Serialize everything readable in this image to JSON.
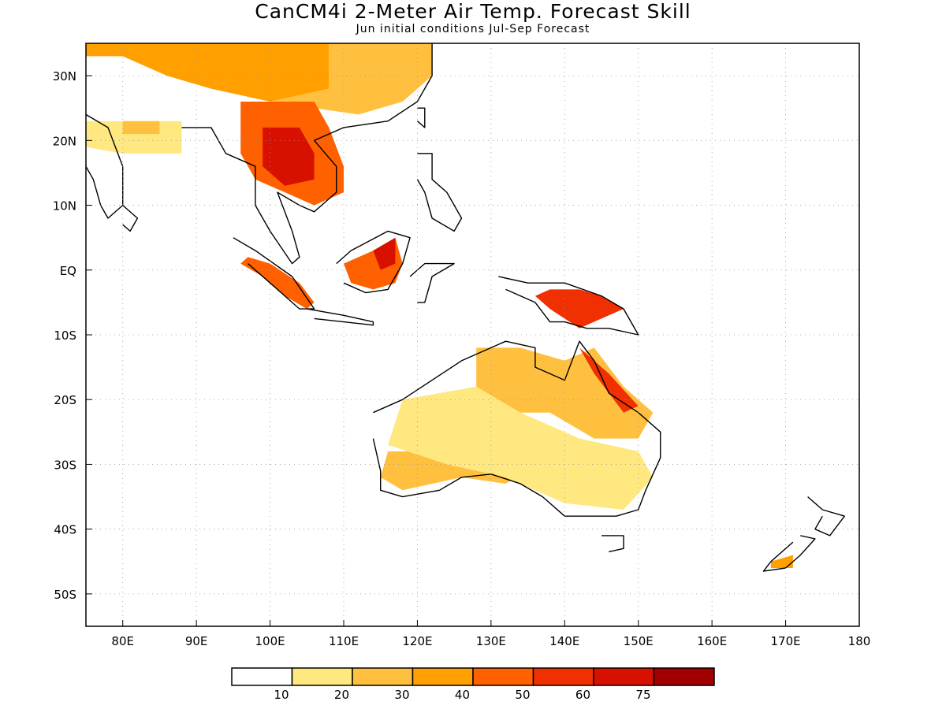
{
  "title": "CanCM4i 2-Meter Air Temp. Forecast Skill",
  "subtitle": "Jun initial conditions  Jul-Sep Forecast",
  "map": {
    "region": "Southeast Asia, Maritime Continent, Australia, Western Pacific",
    "lon_range": [
      75,
      180
    ],
    "lat_range": [
      -55,
      35
    ],
    "lon_ticks": [
      {
        "value": 80,
        "label": "80E"
      },
      {
        "value": 90,
        "label": "90E"
      },
      {
        "value": 100,
        "label": "100E"
      },
      {
        "value": 110,
        "label": "110E"
      },
      {
        "value": 120,
        "label": "120E"
      },
      {
        "value": 130,
        "label": "130E"
      },
      {
        "value": 140,
        "label": "140E"
      },
      {
        "value": 150,
        "label": "150E"
      },
      {
        "value": 160,
        "label": "160E"
      },
      {
        "value": 170,
        "label": "170E"
      },
      {
        "value": 180,
        "label": "180"
      }
    ],
    "lat_ticks": [
      {
        "value": 30,
        "label": "30N"
      },
      {
        "value": 20,
        "label": "20N"
      },
      {
        "value": 10,
        "label": "10N"
      },
      {
        "value": 0,
        "label": "EQ"
      },
      {
        "value": -10,
        "label": "10S"
      },
      {
        "value": -20,
        "label": "20S"
      },
      {
        "value": -30,
        "label": "30S"
      },
      {
        "value": -40,
        "label": "40S"
      },
      {
        "value": -50,
        "label": "50S"
      }
    ],
    "grid": "dotted"
  },
  "legend": {
    "colors": [
      "#ffffff",
      "#ffe880",
      "#ffc040",
      "#ffa000",
      "#ff6000",
      "#f03000",
      "#d81000",
      "#a00000"
    ],
    "labels": [
      "10",
      "20",
      "30",
      "40",
      "50",
      "60",
      "75"
    ]
  },
  "skill_regions": [
    {
      "name": "south-asia-north",
      "level": 3,
      "points": [
        [
          75,
          35
        ],
        [
          108,
          35
        ],
        [
          108,
          28
        ],
        [
          100,
          26
        ],
        [
          92,
          28
        ],
        [
          86,
          30
        ],
        [
          80,
          33
        ],
        [
          75,
          33
        ]
      ]
    },
    {
      "name": "tibet-china",
      "level": 2,
      "points": [
        [
          108,
          35
        ],
        [
          122,
          35
        ],
        [
          122,
          30
        ],
        [
          118,
          26
        ],
        [
          112,
          24
        ],
        [
          106,
          25
        ],
        [
          100,
          26
        ],
        [
          108,
          28
        ]
      ]
    },
    {
      "name": "india-band",
      "level": 1,
      "points": [
        [
          75,
          23
        ],
        [
          88,
          23
        ],
        [
          88,
          18
        ],
        [
          80,
          18
        ],
        [
          75,
          19
        ]
      ]
    },
    {
      "name": "india-band-2",
      "level": 2,
      "points": [
        [
          80,
          23
        ],
        [
          85,
          23
        ],
        [
          85,
          21
        ],
        [
          80,
          21
        ]
      ]
    },
    {
      "name": "indochina-outer",
      "level": 4,
      "points": [
        [
          96,
          26
        ],
        [
          106,
          26
        ],
        [
          108,
          22
        ],
        [
          110,
          16
        ],
        [
          110,
          12
        ],
        [
          106,
          10
        ],
        [
          102,
          12
        ],
        [
          98,
          14
        ],
        [
          96,
          18
        ]
      ]
    },
    {
      "name": "indochina-core",
      "level": 6,
      "points": [
        [
          99,
          22
        ],
        [
          104,
          22
        ],
        [
          106,
          18
        ],
        [
          106,
          14
        ],
        [
          102,
          13
        ],
        [
          99,
          16
        ]
      ]
    },
    {
      "name": "sumatra",
      "level": 4,
      "points": [
        [
          97,
          2
        ],
        [
          100,
          1
        ],
        [
          104,
          -2
        ],
        [
          106,
          -5
        ],
        [
          105,
          -6
        ],
        [
          102,
          -4
        ],
        [
          99,
          -1
        ],
        [
          96,
          1
        ]
      ]
    },
    {
      "name": "borneo",
      "level": 4,
      "points": [
        [
          110,
          1
        ],
        [
          114,
          3
        ],
        [
          117,
          5
        ],
        [
          118,
          1
        ],
        [
          117,
          -2
        ],
        [
          114,
          -3
        ],
        [
          111,
          -2
        ]
      ]
    },
    {
      "name": "borneo-core",
      "level": 6,
      "points": [
        [
          114,
          3
        ],
        [
          117,
          5
        ],
        [
          117,
          1
        ],
        [
          115,
          0
        ]
      ]
    },
    {
      "name": "new-guinea",
      "level": 5,
      "points": [
        [
          138,
          -3
        ],
        [
          142,
          -3
        ],
        [
          145,
          -4
        ],
        [
          148,
          -6
        ],
        [
          146,
          -7
        ],
        [
          142,
          -9
        ],
        [
          138,
          -6
        ],
        [
          136,
          -4
        ]
      ]
    },
    {
      "name": "australia-north",
      "level": 2,
      "points": [
        [
          128,
          -12
        ],
        [
          134,
          -12
        ],
        [
          140,
          -14
        ],
        [
          144,
          -12
        ],
        [
          148,
          -18
        ],
        [
          152,
          -22
        ],
        [
          150,
          -26
        ],
        [
          144,
          -26
        ],
        [
          138,
          -22
        ],
        [
          132,
          -22
        ],
        [
          128,
          -18
        ]
      ]
    },
    {
      "name": "australia-east",
      "level": 5,
      "points": [
        [
          142,
          -12
        ],
        [
          146,
          -16
        ],
        [
          150,
          -21
        ],
        [
          148,
          -22
        ],
        [
          144,
          -16
        ]
      ]
    },
    {
      "name": "australia-southwest",
      "level": 2,
      "points": [
        [
          116,
          -28
        ],
        [
          124,
          -28
        ],
        [
          130,
          -27
        ],
        [
          136,
          -30
        ],
        [
          132,
          -33
        ],
        [
          126,
          -32
        ],
        [
          118,
          -34
        ],
        [
          115,
          -32
        ]
      ]
    },
    {
      "name": "australia-interior",
      "level": 1,
      "points": [
        [
          118,
          -20
        ],
        [
          128,
          -18
        ],
        [
          134,
          -22
        ],
        [
          142,
          -26
        ],
        [
          150,
          -28
        ],
        [
          152,
          -32
        ],
        [
          148,
          -37
        ],
        [
          140,
          -36
        ],
        [
          132,
          -32
        ],
        [
          124,
          -30
        ],
        [
          116,
          -27
        ]
      ]
    },
    {
      "name": "new-zealand-south",
      "level": 3,
      "points": [
        [
          168,
          -45
        ],
        [
          171,
          -44
        ],
        [
          171,
          -46
        ],
        [
          168,
          -46
        ]
      ]
    }
  ]
}
